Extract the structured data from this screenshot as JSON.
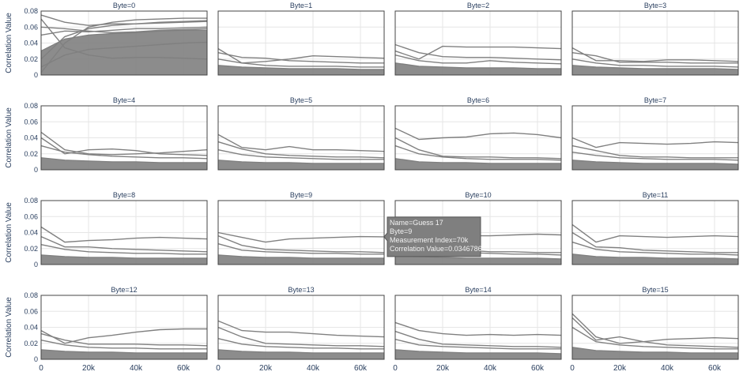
{
  "chart_data": {
    "type": "line",
    "layout": "4x4 small multiples",
    "ylabel": "Correlation Value",
    "xlim": [
      0,
      70000
    ],
    "ylim": [
      0,
      0.08
    ],
    "xticks": [
      0,
      20000,
      40000,
      60000
    ],
    "xtick_labels": [
      "0",
      "20k",
      "40k",
      "60k"
    ],
    "yticks": [
      0,
      0.02,
      0.04,
      0.06,
      0.08
    ],
    "ytick_labels": [
      "0",
      "0.02",
      "0.04",
      "0.06",
      "0.08"
    ],
    "grid": true,
    "line_color": "#808080",
    "x": [
      0,
      10000,
      20000,
      30000,
      40000,
      50000,
      60000,
      70000
    ],
    "panels": [
      {
        "title": "Byte=0",
        "series": [
          {
            "values": [
              0.003,
              0.04,
              0.06,
              0.066,
              0.069,
              0.07,
              0.071,
              0.071
            ]
          },
          {
            "values": [
              0.075,
              0.066,
              0.062,
              0.064,
              0.064,
              0.065,
              0.066,
              0.067
            ]
          },
          {
            "values": [
              0.07,
              0.034,
              0.025,
              0.021,
              0.022,
              0.022,
              0.021,
              0.02
            ]
          },
          {
            "values": [
              0.01,
              0.025,
              0.032,
              0.034,
              0.036,
              0.038,
              0.04,
              0.041
            ]
          },
          {
            "values": [
              0.05,
              0.055,
              0.054,
              0.056,
              0.058,
              0.058,
              0.059,
              0.06
            ]
          },
          {
            "values": [
              0.02,
              0.048,
              0.058,
              0.062,
              0.064,
              0.066,
              0.067,
              0.068
            ]
          },
          {
            "values": [
              0.06,
              0.058,
              0.055,
              0.053,
              0.054,
              0.056,
              0.057,
              0.058
            ]
          },
          {
            "values": [
              0.03,
              0.045,
              0.05,
              0.052,
              0.053,
              0.055,
              0.056,
              0.056
            ]
          }
        ]
      },
      {
        "title": "Byte=1",
        "series": [
          {
            "values": [
              0.033,
              0.015,
              0.017,
              0.02,
              0.024,
              0.023,
              0.022,
              0.021
            ]
          },
          {
            "values": [
              0.028,
              0.022,
              0.021,
              0.018,
              0.017,
              0.016,
              0.015,
              0.015
            ]
          },
          {
            "values": [
              0.02,
              0.015,
              0.012,
              0.011,
              0.011,
              0.011,
              0.01,
              0.01
            ]
          },
          {
            "values": [
              0.012,
              0.01,
              0.009,
              0.008,
              0.008,
              0.008,
              0.007,
              0.007
            ]
          }
        ]
      },
      {
        "title": "Byte=2",
        "series": [
          {
            "values": [
              0.03,
              0.02,
              0.036,
              0.035,
              0.035,
              0.035,
              0.034,
              0.033
            ]
          },
          {
            "values": [
              0.038,
              0.028,
              0.023,
              0.022,
              0.022,
              0.021,
              0.02,
              0.019
            ]
          },
          {
            "values": [
              0.025,
              0.018,
              0.015,
              0.015,
              0.018,
              0.016,
              0.015,
              0.014
            ]
          },
          {
            "values": [
              0.015,
              0.011,
              0.01,
              0.009,
              0.009,
              0.009,
              0.008,
              0.008
            ]
          }
        ]
      },
      {
        "title": "Byte=3",
        "series": [
          {
            "values": [
              0.034,
              0.018,
              0.018,
              0.017,
              0.019,
              0.019,
              0.018,
              0.017
            ]
          },
          {
            "values": [
              0.028,
              0.024,
              0.016,
              0.016,
              0.016,
              0.015,
              0.015,
              0.015
            ]
          },
          {
            "values": [
              0.02,
              0.015,
              0.012,
              0.012,
              0.011,
              0.011,
              0.011,
              0.01
            ]
          },
          {
            "values": [
              0.012,
              0.01,
              0.009,
              0.008,
              0.008,
              0.008,
              0.008,
              0.007
            ]
          }
        ]
      },
      {
        "title": "Byte=4",
        "series": [
          {
            "values": [
              0.047,
              0.025,
              0.02,
              0.019,
              0.02,
              0.021,
              0.023,
              0.025
            ]
          },
          {
            "values": [
              0.04,
              0.02,
              0.025,
              0.026,
              0.024,
              0.02,
              0.019,
              0.018
            ]
          },
          {
            "values": [
              0.03,
              0.022,
              0.019,
              0.017,
              0.016,
              0.015,
              0.015,
              0.014
            ]
          },
          {
            "values": [
              0.015,
              0.012,
              0.011,
              0.01,
              0.01,
              0.009,
              0.009,
              0.009
            ]
          }
        ]
      },
      {
        "title": "Byte=5",
        "series": [
          {
            "values": [
              0.044,
              0.028,
              0.025,
              0.029,
              0.025,
              0.025,
              0.024,
              0.023
            ]
          },
          {
            "values": [
              0.035,
              0.026,
              0.02,
              0.018,
              0.017,
              0.016,
              0.016,
              0.015
            ]
          },
          {
            "values": [
              0.025,
              0.019,
              0.016,
              0.015,
              0.014,
              0.013,
              0.013,
              0.013
            ]
          },
          {
            "values": [
              0.012,
              0.01,
              0.009,
              0.009,
              0.008,
              0.008,
              0.008,
              0.008
            ]
          }
        ]
      },
      {
        "title": "Byte=6",
        "series": [
          {
            "values": [
              0.052,
              0.038,
              0.04,
              0.041,
              0.045,
              0.046,
              0.044,
              0.04
            ]
          },
          {
            "values": [
              0.04,
              0.025,
              0.017,
              0.016,
              0.016,
              0.015,
              0.015,
              0.014
            ]
          },
          {
            "values": [
              0.03,
              0.02,
              0.016,
              0.014,
              0.013,
              0.013,
              0.013,
              0.012
            ]
          },
          {
            "values": [
              0.014,
              0.01,
              0.009,
              0.009,
              0.008,
              0.008,
              0.008,
              0.008
            ]
          }
        ]
      },
      {
        "title": "Byte=7",
        "series": [
          {
            "values": [
              0.04,
              0.028,
              0.034,
              0.033,
              0.032,
              0.033,
              0.035,
              0.034
            ]
          },
          {
            "values": [
              0.03,
              0.024,
              0.018,
              0.016,
              0.016,
              0.015,
              0.015,
              0.015
            ]
          },
          {
            "values": [
              0.022,
              0.018,
              0.015,
              0.014,
              0.013,
              0.013,
              0.013,
              0.012
            ]
          },
          {
            "values": [
              0.012,
              0.01,
              0.009,
              0.008,
              0.008,
              0.008,
              0.008,
              0.007
            ]
          }
        ]
      },
      {
        "title": "Byte=8",
        "series": [
          {
            "values": [
              0.047,
              0.028,
              0.03,
              0.031,
              0.033,
              0.034,
              0.033,
              0.032
            ]
          },
          {
            "values": [
              0.035,
              0.022,
              0.022,
              0.02,
              0.019,
              0.018,
              0.017,
              0.016
            ]
          },
          {
            "values": [
              0.025,
              0.019,
              0.016,
              0.015,
              0.014,
              0.014,
              0.013,
              0.013
            ]
          },
          {
            "values": [
              0.012,
              0.01,
              0.009,
              0.009,
              0.008,
              0.008,
              0.008,
              0.008
            ]
          }
        ]
      },
      {
        "title": "Byte=9",
        "series": [
          {
            "values": [
              0.04,
              0.034,
              0.028,
              0.032,
              0.033,
              0.034,
              0.035,
              0.0346786
            ]
          },
          {
            "values": [
              0.036,
              0.024,
              0.019,
              0.018,
              0.017,
              0.016,
              0.016,
              0.015
            ]
          },
          {
            "values": [
              0.026,
              0.018,
              0.016,
              0.015,
              0.014,
              0.014,
              0.013,
              0.013
            ]
          },
          {
            "values": [
              0.012,
              0.01,
              0.009,
              0.009,
              0.008,
              0.008,
              0.008,
              0.008
            ]
          }
        ]
      },
      {
        "title": "Byte=10",
        "series": [
          {
            "values": [
              0.036,
              0.032,
              0.034,
              0.036,
              0.036,
              0.037,
              0.038,
              0.037
            ]
          },
          {
            "values": [
              0.034,
              0.026,
              0.02,
              0.018,
              0.016,
              0.016,
              0.015,
              0.015
            ]
          },
          {
            "values": [
              0.025,
              0.019,
              0.016,
              0.015,
              0.014,
              0.013,
              0.013,
              0.012
            ]
          },
          {
            "values": [
              0.012,
              0.01,
              0.009,
              0.008,
              0.008,
              0.008,
              0.008,
              0.007
            ]
          }
        ]
      },
      {
        "title": "Byte=11",
        "series": [
          {
            "values": [
              0.05,
              0.028,
              0.036,
              0.035,
              0.034,
              0.035,
              0.036,
              0.035
            ]
          },
          {
            "values": [
              0.04,
              0.022,
              0.021,
              0.018,
              0.017,
              0.016,
              0.015,
              0.015
            ]
          },
          {
            "values": [
              0.028,
              0.019,
              0.016,
              0.015,
              0.014,
              0.013,
              0.013,
              0.012
            ]
          },
          {
            "values": [
              0.013,
              0.01,
              0.009,
              0.009,
              0.008,
              0.008,
              0.008,
              0.007
            ]
          }
        ]
      },
      {
        "title": "Byte=12",
        "series": [
          {
            "values": [
              0.036,
              0.02,
              0.027,
              0.03,
              0.034,
              0.037,
              0.038,
              0.038
            ]
          },
          {
            "values": [
              0.032,
              0.024,
              0.019,
              0.019,
              0.019,
              0.018,
              0.018,
              0.017
            ]
          },
          {
            "values": [
              0.024,
              0.018,
              0.015,
              0.014,
              0.014,
              0.013,
              0.013,
              0.013
            ]
          },
          {
            "values": [
              0.012,
              0.01,
              0.009,
              0.009,
              0.008,
              0.008,
              0.008,
              0.008
            ]
          }
        ]
      },
      {
        "title": "Byte=13",
        "series": [
          {
            "values": [
              0.048,
              0.036,
              0.034,
              0.034,
              0.032,
              0.03,
              0.029,
              0.028
            ]
          },
          {
            "values": [
              0.04,
              0.028,
              0.02,
              0.019,
              0.018,
              0.017,
              0.017,
              0.016
            ]
          },
          {
            "values": [
              0.026,
              0.019,
              0.016,
              0.015,
              0.014,
              0.014,
              0.013,
              0.013
            ]
          },
          {
            "values": [
              0.012,
              0.01,
              0.009,
              0.009,
              0.008,
              0.008,
              0.008,
              0.008
            ]
          }
        ]
      },
      {
        "title": "Byte=14",
        "series": [
          {
            "values": [
              0.046,
              0.036,
              0.032,
              0.03,
              0.031,
              0.03,
              0.031,
              0.03
            ]
          },
          {
            "values": [
              0.035,
              0.025,
              0.019,
              0.018,
              0.017,
              0.016,
              0.016,
              0.015
            ]
          },
          {
            "values": [
              0.025,
              0.018,
              0.016,
              0.015,
              0.014,
              0.013,
              0.013,
              0.013
            ]
          },
          {
            "values": [
              0.012,
              0.01,
              0.009,
              0.008,
              0.008,
              0.008,
              0.008,
              0.007
            ]
          }
        ]
      },
      {
        "title": "Byte=15",
        "series": [
          {
            "values": [
              0.057,
              0.028,
              0.02,
              0.022,
              0.025,
              0.026,
              0.027,
              0.026
            ]
          },
          {
            "values": [
              0.052,
              0.024,
              0.028,
              0.022,
              0.018,
              0.017,
              0.016,
              0.015
            ]
          },
          {
            "values": [
              0.04,
              0.022,
              0.018,
              0.016,
              0.015,
              0.014,
              0.013,
              0.013
            ]
          },
          {
            "values": [
              0.015,
              0.011,
              0.01,
              0.009,
              0.009,
              0.008,
              0.008,
              0.008
            ]
          }
        ]
      }
    ],
    "band_lower": [
      0.0,
      0.0,
      0.0,
      0.0,
      0.0,
      0.0,
      0.0,
      0.0
    ],
    "tooltip": {
      "panel": "Byte=9",
      "lines": [
        "Name=Guess 17",
        "Byte=9",
        "Measurement Index=70k",
        "Correlation Value=0.0346786"
      ],
      "x": 70000,
      "y": 0.0346786
    }
  }
}
